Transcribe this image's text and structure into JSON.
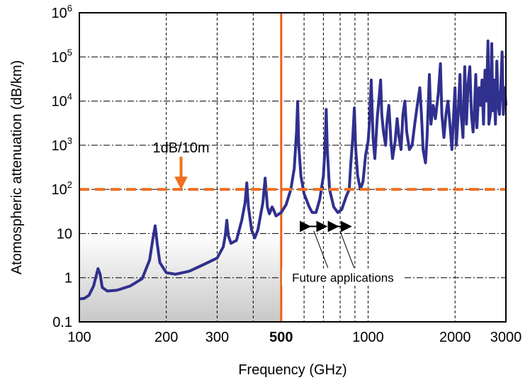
{
  "chart_data": {
    "type": "line",
    "title": "",
    "xlabel": "Frequency (GHz)",
    "ylabel": "Atomospheric attenuation (dB/km)",
    "x_scale": "log",
    "y_scale": "log",
    "xlim": [
      100,
      3000
    ],
    "ylim": [
      0.1,
      1000000
    ],
    "grid": true,
    "x_ticks": [
      {
        "value": 100,
        "label": "100",
        "bold": false
      },
      {
        "value": 200,
        "label": "200",
        "bold": false
      },
      {
        "value": 300,
        "label": "300",
        "bold": false
      },
      {
        "value": 500,
        "label": "500",
        "bold": true
      },
      {
        "value": 1000,
        "label": "1000",
        "bold": false
      },
      {
        "value": 2000,
        "label": "2000",
        "bold": false
      },
      {
        "value": 3000,
        "label": "3000",
        "bold": false
      }
    ],
    "x_minor_grid": [
      400,
      600,
      700,
      800,
      900
    ],
    "y_ticks": [
      {
        "value": 0.1,
        "label": "0.1"
      },
      {
        "value": 1,
        "label": "1"
      },
      {
        "value": 10,
        "label": "10"
      },
      {
        "value": 100,
        "label": "10",
        "exp": "2"
      },
      {
        "value": 1000,
        "label": "10",
        "exp": "3"
      },
      {
        "value": 10000,
        "label": "10",
        "exp": "4"
      },
      {
        "value": 100000,
        "label": "10",
        "exp": "5"
      },
      {
        "value": 1000000,
        "label": "10",
        "exp": "6"
      }
    ],
    "colors": {
      "series": "#30308e",
      "threshold": "#f07020",
      "marker": "#e8601c",
      "shade": "#c8c8c8"
    },
    "shaded_region": {
      "x": [
        100,
        500
      ],
      "y": [
        0.1,
        10
      ]
    },
    "vertical_marker": {
      "x": 500
    },
    "threshold": {
      "y": 100,
      "label": "1dB/10m",
      "arrow_x": 225
    },
    "future_applications": {
      "label": "Future applications",
      "ranges": [
        [
          600,
          700
        ],
        [
          750,
          850
        ]
      ]
    },
    "series": [
      {
        "points": [
          [
            100,
            0.33
          ],
          [
            104,
            0.34
          ],
          [
            108,
            0.4
          ],
          [
            112,
            0.65
          ],
          [
            116,
            1.6
          ],
          [
            118,
            1.2
          ],
          [
            120,
            0.6
          ],
          [
            125,
            0.5
          ],
          [
            135,
            0.52
          ],
          [
            150,
            0.65
          ],
          [
            165,
            0.95
          ],
          [
            175,
            2.5
          ],
          [
            180,
            8
          ],
          [
            183,
            15
          ],
          [
            186,
            6
          ],
          [
            190,
            2.2
          ],
          [
            200,
            1.3
          ],
          [
            215,
            1.2
          ],
          [
            240,
            1.4
          ],
          [
            270,
            2
          ],
          [
            300,
            2.8
          ],
          [
            315,
            5
          ],
          [
            320,
            9
          ],
          [
            324,
            20
          ],
          [
            328,
            9
          ],
          [
            335,
            6
          ],
          [
            350,
            7
          ],
          [
            365,
            20
          ],
          [
            375,
            50
          ],
          [
            380,
            140
          ],
          [
            385,
            40
          ],
          [
            395,
            12
          ],
          [
            405,
            8
          ],
          [
            415,
            12
          ],
          [
            432,
            50
          ],
          [
            440,
            180
          ],
          [
            448,
            40
          ],
          [
            455,
            28
          ],
          [
            465,
            40
          ],
          [
            470,
            35
          ],
          [
            480,
            25
          ],
          [
            500,
            30
          ],
          [
            520,
            45
          ],
          [
            540,
            100
          ],
          [
            555,
            300
          ],
          [
            565,
            2000
          ],
          [
            570,
            9800
          ],
          [
            575,
            1000
          ],
          [
            585,
            200
          ],
          [
            600,
            80
          ],
          [
            625,
            40
          ],
          [
            640,
            30
          ],
          [
            660,
            30
          ],
          [
            680,
            60
          ],
          [
            700,
            200
          ],
          [
            710,
            1000
          ],
          [
            716,
            6500
          ],
          [
            722,
            800
          ],
          [
            735,
            100
          ],
          [
            760,
            40
          ],
          [
            785,
            30
          ],
          [
            810,
            35
          ],
          [
            840,
            70
          ],
          [
            860,
            100
          ],
          [
            870,
            350
          ],
          [
            885,
            1500
          ],
          [
            896,
            7000
          ],
          [
            905,
            900
          ],
          [
            920,
            200
          ],
          [
            940,
            100
          ],
          [
            960,
            150
          ],
          [
            980,
            600
          ],
          [
            1000,
            1200
          ],
          [
            1010,
            3000
          ],
          [
            1025,
            30000
          ],
          [
            1040,
            1500
          ],
          [
            1055,
            500
          ],
          [
            1075,
            4000
          ],
          [
            1095,
            15000
          ],
          [
            1105,
            30000
          ],
          [
            1115,
            5000
          ],
          [
            1130,
            2000
          ],
          [
            1150,
            1000
          ],
          [
            1160,
            3000
          ],
          [
            1180,
            8000
          ],
          [
            1200,
            1200
          ],
          [
            1215,
            500
          ],
          [
            1240,
            1200
          ],
          [
            1260,
            4000
          ],
          [
            1280,
            1500
          ],
          [
            1300,
            800
          ],
          [
            1320,
            5000
          ],
          [
            1340,
            10000
          ],
          [
            1360,
            2000
          ],
          [
            1390,
            800
          ],
          [
            1420,
            1000
          ],
          [
            1450,
            3000
          ],
          [
            1480,
            8000
          ],
          [
            1510,
            20000
          ],
          [
            1530,
            5000
          ],
          [
            1550,
            800
          ],
          [
            1580,
            400
          ],
          [
            1600,
            1500
          ],
          [
            1630,
            40000
          ],
          [
            1650,
            3000
          ],
          [
            1680,
            8000
          ],
          [
            1710,
            4000
          ],
          [
            1750,
            15000
          ],
          [
            1780,
            70000
          ],
          [
            1800,
            5000
          ],
          [
            1830,
            1500
          ],
          [
            1860,
            5000
          ],
          [
            1890,
            10000
          ],
          [
            1920,
            3000
          ],
          [
            1950,
            800
          ],
          [
            1980,
            6000
          ],
          [
            2000,
            20000
          ],
          [
            2020,
            1000
          ],
          [
            2050,
            5000
          ],
          [
            2080,
            40000
          ],
          [
            2100,
            5000
          ],
          [
            2130,
            1500
          ],
          [
            2160,
            60000
          ],
          [
            2190,
            3000
          ],
          [
            2220,
            25000
          ],
          [
            2250,
            60000
          ],
          [
            2280,
            5000
          ],
          [
            2310,
            2000
          ],
          [
            2330,
            5000
          ],
          [
            2360,
            40000
          ],
          [
            2380,
            2500
          ],
          [
            2420,
            20000
          ],
          [
            2450,
            8000
          ],
          [
            2480,
            30000
          ],
          [
            2510,
            3000
          ],
          [
            2540,
            50000
          ],
          [
            2570,
            10000
          ],
          [
            2600,
            230000
          ],
          [
            2620,
            3000
          ],
          [
            2650,
            5000
          ],
          [
            2680,
            200000
          ],
          [
            2700,
            6000
          ],
          [
            2730,
            30000
          ],
          [
            2760,
            3000
          ],
          [
            2790,
            80000
          ],
          [
            2820,
            8000
          ],
          [
            2850,
            5000
          ],
          [
            2880,
            20000
          ],
          [
            2910,
            130000
          ],
          [
            2940,
            5000
          ],
          [
            2970,
            20000
          ],
          [
            3000,
            8000
          ]
        ]
      }
    ]
  }
}
